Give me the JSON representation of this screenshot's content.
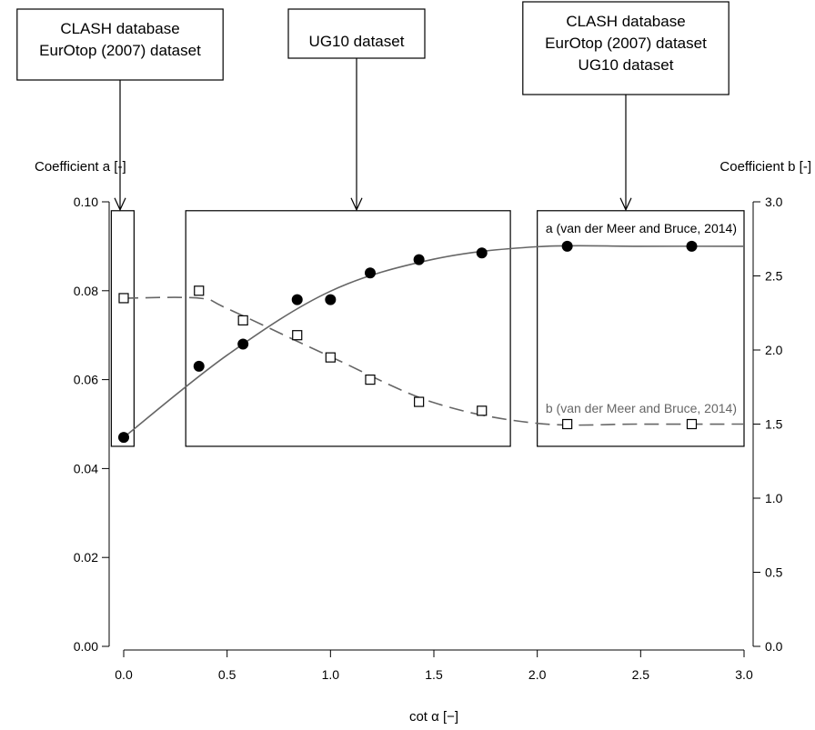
{
  "chart_data": {
    "type": "scatter",
    "xlabel": "cot α [−]",
    "ylabel_left": "Coefficient a [-]",
    "ylabel_right": "Coefficient b [-]",
    "xlim": [
      0,
      3
    ],
    "ylim_left": [
      0,
      0.1
    ],
    "ylim_right": [
      0,
      3
    ],
    "x_ticks": [
      "0.0",
      "0.5",
      "1.0",
      "1.5",
      "2.0",
      "2.5",
      "3.0"
    ],
    "y_left_ticks": [
      "0.00",
      "0.02",
      "0.04",
      "0.06",
      "0.08",
      "0.10"
    ],
    "y_right_ticks": [
      "0.0",
      "0.5",
      "1.0",
      "1.5",
      "2.0",
      "2.5",
      "3.0"
    ],
    "grid": false,
    "series": [
      {
        "marker": "filled-circle",
        "axis": "left",
        "points": [
          [
            0.0,
            0.047
          ],
          [
            0.364,
            0.063
          ],
          [
            0.577,
            0.068
          ],
          [
            0.839,
            0.078
          ],
          [
            1.0,
            0.078
          ],
          [
            1.192,
            0.084
          ],
          [
            1.428,
            0.087
          ],
          [
            1.732,
            0.0885
          ],
          [
            2.145,
            0.09
          ],
          [
            2.747,
            0.09
          ]
        ]
      },
      {
        "marker": "open-square",
        "axis": "right",
        "points": [
          [
            0.0,
            2.35
          ],
          [
            0.364,
            2.4
          ],
          [
            0.577,
            2.2
          ],
          [
            0.839,
            2.1
          ],
          [
            1.0,
            1.95
          ],
          [
            1.192,
            1.8
          ],
          [
            1.428,
            1.65
          ],
          [
            1.732,
            1.59
          ],
          [
            2.145,
            1.5
          ],
          [
            2.747,
            1.5
          ]
        ]
      }
    ],
    "curves": [
      {
        "label": "a (van der Meer and Bruce, 2014)",
        "axis": "left",
        "style": "solid",
        "color": "#666666",
        "points": [
          [
            0.0,
            0.047
          ],
          [
            0.5,
            0.0655
          ],
          [
            1.0,
            0.0799
          ],
          [
            1.5,
            0.0871
          ],
          [
            2.0,
            0.0899
          ],
          [
            2.5,
            0.09
          ],
          [
            3.0,
            0.09
          ]
        ]
      },
      {
        "label": "b (van der Meer and Bruce, 2014)",
        "axis": "right",
        "style": "dashed",
        "color": "#666666",
        "points": [
          [
            0.0,
            2.35
          ],
          [
            0.364,
            2.35
          ],
          [
            0.5,
            2.28
          ],
          [
            1.0,
            1.955
          ],
          [
            1.5,
            1.645
          ],
          [
            2.0,
            1.505
          ],
          [
            2.5,
            1.5
          ],
          [
            3.0,
            1.5
          ]
        ]
      }
    ],
    "annotations": [
      {
        "lines": [
          "CLASH database",
          "EurOtop (2007) dataset"
        ],
        "x_range": [
          -0.06,
          0.05
        ],
        "y_range": [
          0.045,
          0.098
        ]
      },
      {
        "lines": [
          "UG10 dataset"
        ],
        "x_range": [
          0.3,
          1.87
        ],
        "y_range": [
          0.045,
          0.098
        ]
      },
      {
        "lines": [
          "CLASH database",
          "EurOtop (2007) dataset",
          "UG10 dataset"
        ],
        "x_range": [
          2.0,
          3.0
        ],
        "y_range": [
          0.045,
          0.098
        ]
      }
    ]
  }
}
